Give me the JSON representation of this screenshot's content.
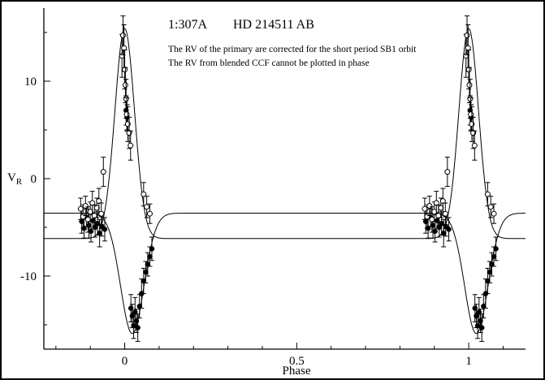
{
  "colors": {
    "foreground": "#000000",
    "background": "#ffffff"
  },
  "chart_data": {
    "type": "scatter",
    "title": "1:307A   HD 214511 AB",
    "title_parts": {
      "id": "1:307A",
      "system": "HD 214511 AB"
    },
    "annotations": [
      "The RV of the primary are corrected for the short period SB1 orbit",
      "The RV from blended CCF cannot be plotted in phase"
    ],
    "xlabel": "Phase",
    "ylabel_main": "V",
    "ylabel_sub": "R",
    "xlim": [
      -0.235,
      1.165
    ],
    "ylim": [
      -17.5,
      17.5
    ],
    "xticks": [
      0,
      0.5,
      1
    ],
    "xtick_labels": [
      "0",
      "0.5",
      "1"
    ],
    "xticks_minor": [
      -0.2,
      -0.1,
      0.1,
      0.2,
      0.3,
      0.4,
      0.6,
      0.7,
      0.8,
      0.9,
      1.1
    ],
    "yticks": [
      10,
      0,
      -10
    ],
    "ytick_labels": [
      "10",
      "0",
      "-10"
    ],
    "yticks_minor": [
      15,
      5,
      -5,
      -15
    ],
    "grid": false,
    "legend": "none",
    "phase_duplicate_offset": 1,
    "series": [
      {
        "name": "primary RV (filled circles)",
        "marker": "filled-circle",
        "points": [
          [
            -0.125,
            -4.4,
            1.2
          ],
          [
            -0.118,
            -5.1,
            1.0
          ],
          [
            -0.111,
            -4.0,
            0.9
          ],
          [
            -0.104,
            -4.8,
            1.3
          ],
          [
            -0.098,
            -5.4,
            1.1
          ],
          [
            -0.092,
            -4.3,
            0.8
          ],
          [
            -0.086,
            -5.0,
            1.0
          ],
          [
            -0.079,
            -4.6,
            1.2
          ],
          [
            -0.073,
            -5.6,
            1.4
          ],
          [
            -0.067,
            -4.9,
            1.0
          ],
          [
            -0.058,
            -5.2,
            1.2
          ],
          [
            0.004,
            7.0,
            1.5
          ],
          [
            0.007,
            6.3,
            1.3
          ],
          [
            0.018,
            -13.3,
            1.4
          ],
          [
            0.022,
            -14.1,
            1.2
          ],
          [
            0.026,
            -15.1,
            1.3
          ],
          [
            0.03,
            -13.7,
            1.5
          ],
          [
            0.034,
            -14.6,
            1.2
          ],
          [
            0.038,
            -15.3,
            1.4
          ],
          [
            0.043,
            -13.1,
            1.2
          ],
          [
            0.049,
            -11.8,
            1.5
          ],
          [
            0.055,
            -10.5,
            1.3
          ],
          [
            0.061,
            -9.6,
            1.1
          ],
          [
            0.067,
            -8.8,
            1.2
          ],
          [
            0.073,
            -8.0,
            1.0
          ],
          [
            0.079,
            -7.2,
            1.2
          ]
        ]
      },
      {
        "name": "secondary RV (open circles)",
        "marker": "open-circle",
        "points": [
          [
            -0.128,
            -3.1,
            1.1
          ],
          [
            -0.121,
            -3.9,
            1.2
          ],
          [
            -0.114,
            -2.8,
            1.0
          ],
          [
            -0.107,
            -4.2,
            1.3
          ],
          [
            -0.1,
            -3.4,
            1.0
          ],
          [
            -0.094,
            -2.5,
            1.2
          ],
          [
            -0.088,
            -3.8,
            1.1
          ],
          [
            -0.081,
            -3.0,
            1.0
          ],
          [
            -0.075,
            -2.3,
            1.3
          ],
          [
            -0.068,
            -3.6,
            1.1
          ],
          [
            -0.062,
            0.7,
            1.5
          ],
          [
            -0.008,
            12.6,
            2.2
          ],
          [
            -0.005,
            14.7,
            2.0
          ],
          [
            -0.002,
            13.4,
            2.4
          ],
          [
            0.0,
            11.2,
            2.0
          ],
          [
            0.002,
            9.6,
            1.8
          ],
          [
            0.004,
            8.2,
            2.0
          ],
          [
            0.006,
            6.6,
            1.7
          ],
          [
            0.009,
            5.6,
            1.8
          ],
          [
            0.013,
            4.7,
            1.6
          ],
          [
            0.017,
            3.4,
            1.5
          ],
          [
            0.055,
            -1.6,
            1.2
          ],
          [
            0.064,
            -2.9,
            1.1
          ],
          [
            0.073,
            -3.6,
            1.0
          ]
        ]
      }
    ],
    "curves": [
      {
        "name": "primary-orbit-fit",
        "gamma": -4.6,
        "amp": -11.3,
        "kappa": 22,
        "phase0": 0.022
      },
      {
        "name": "secondary-orbit-fit",
        "gamma": -4.6,
        "amp": 20.0,
        "kappa": 31,
        "phase0": 0.0
      }
    ]
  }
}
